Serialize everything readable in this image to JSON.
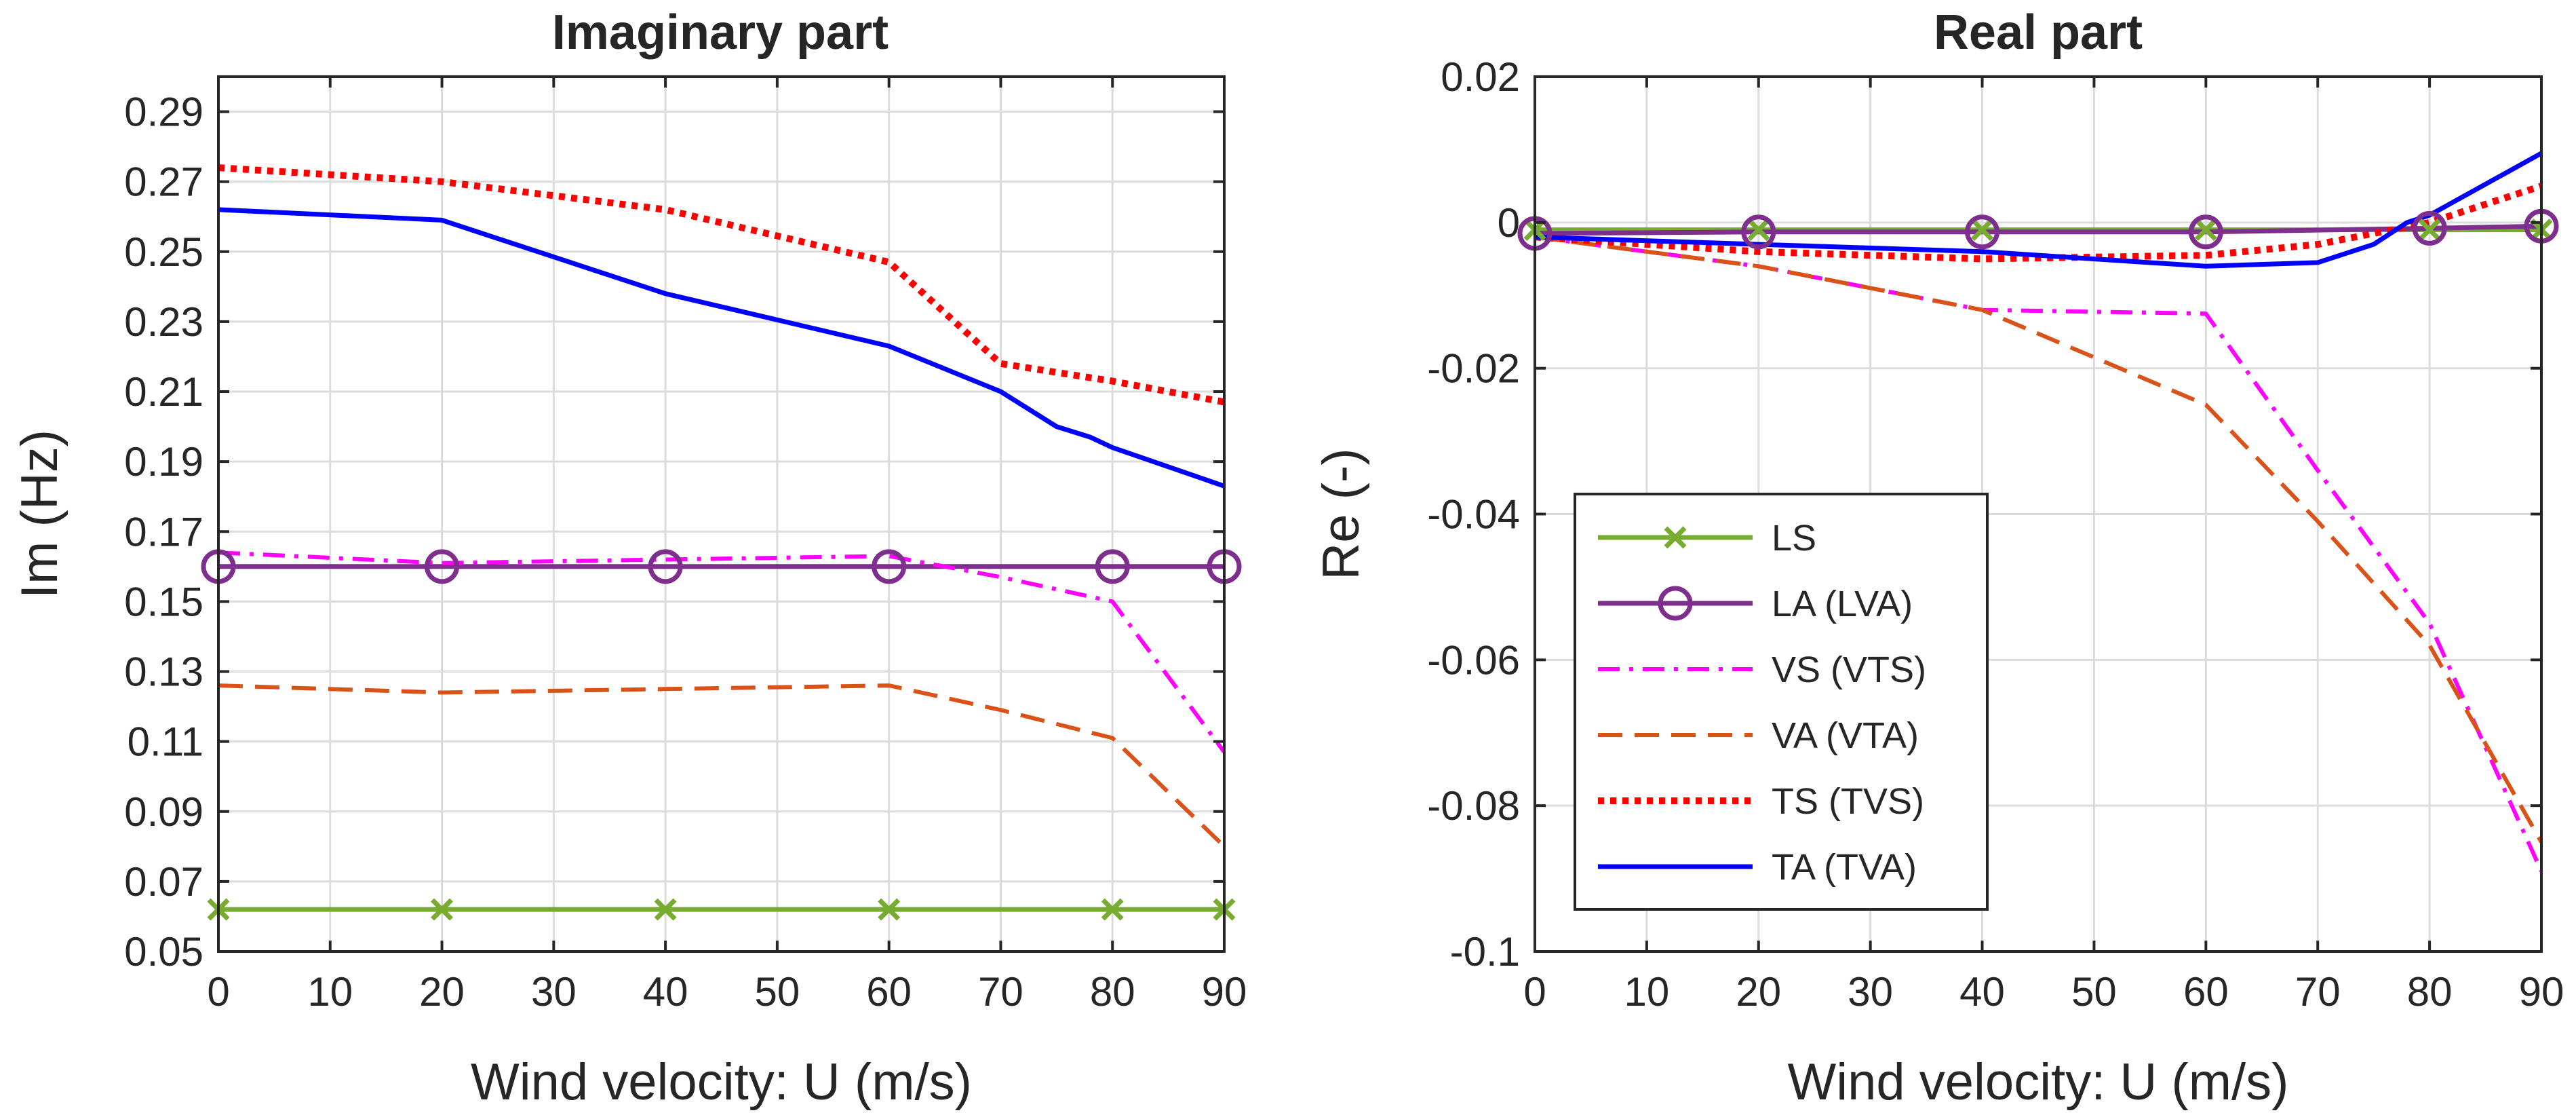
{
  "chart_data": [
    {
      "type": "line",
      "title": "Imaginary part",
      "xlabel": "Wind velocity: U (m/s)",
      "ylabel": "Im (Hz)",
      "xlim": [
        0,
        90
      ],
      "ylim": [
        0.05,
        0.3
      ],
      "grid": true,
      "x_ticks": [
        0,
        10,
        20,
        30,
        40,
        50,
        60,
        70,
        80,
        90
      ],
      "x_tick_labels": [
        "0",
        "10",
        "20",
        "30",
        "40",
        "50",
        "60",
        "70",
        "80",
        "90"
      ],
      "y_ticks": [
        0.05,
        0.07,
        0.09,
        0.11,
        0.13,
        0.15,
        0.17,
        0.19,
        0.21,
        0.23,
        0.25,
        0.27,
        0.29
      ],
      "y_tick_labels": [
        "0.05",
        "0.07",
        "0.09",
        "0.11",
        "0.13",
        "0.15",
        "0.17",
        "0.19",
        "0.21",
        "0.23",
        "0.25",
        "0.27",
        "0.29"
      ],
      "series": [
        {
          "name": "LS",
          "color": "#77ac30",
          "style": "solid",
          "marker": "x",
          "marker_x": [
            0,
            20,
            40,
            60,
            80,
            90
          ],
          "x": [
            0,
            20,
            40,
            60,
            80,
            90
          ],
          "y": [
            0.062,
            0.062,
            0.062,
            0.062,
            0.062,
            0.062
          ]
        },
        {
          "name": "LA (LVA)",
          "color": "#7e2f8e",
          "style": "solid",
          "marker": "o",
          "marker_x": [
            0,
            20,
            40,
            60,
            80,
            90
          ],
          "x": [
            0,
            20,
            40,
            60,
            80,
            90
          ],
          "y": [
            0.16,
            0.16,
            0.16,
            0.16,
            0.16,
            0.16
          ]
        },
        {
          "name": "VS (VTS)",
          "color": "#ff00ff",
          "style": "dashdot",
          "x": [
            0,
            20,
            40,
            60,
            70,
            80,
            90
          ],
          "y": [
            0.164,
            0.161,
            0.162,
            0.163,
            0.157,
            0.15,
            0.107
          ]
        },
        {
          "name": "VA (VTA)",
          "color": "#d95319",
          "style": "dashed",
          "x": [
            0,
            20,
            40,
            60,
            70,
            80,
            90
          ],
          "y": [
            0.126,
            0.124,
            0.125,
            0.126,
            0.119,
            0.111,
            0.08
          ]
        },
        {
          "name": "TS (TVS)",
          "color": "#ff0000",
          "style": "dotted",
          "x": [
            0,
            20,
            40,
            60,
            70,
            80,
            90
          ],
          "y": [
            0.274,
            0.27,
            0.262,
            0.247,
            0.218,
            0.213,
            0.207
          ]
        },
        {
          "name": "TA (TVA)",
          "color": "#0000ff",
          "style": "solid",
          "x": [
            0,
            20,
            40,
            60,
            70,
            75,
            78,
            80,
            90
          ],
          "y": [
            0.262,
            0.259,
            0.238,
            0.223,
            0.21,
            0.2,
            0.197,
            0.194,
            0.183
          ]
        }
      ]
    },
    {
      "type": "line",
      "title": "Real part",
      "xlabel": "Wind velocity: U (m/s)",
      "ylabel": "Re (-)",
      "xlim": [
        0,
        90
      ],
      "ylim": [
        -0.1,
        0.02
      ],
      "grid": true,
      "x_ticks": [
        0,
        10,
        20,
        30,
        40,
        50,
        60,
        70,
        80,
        90
      ],
      "x_tick_labels": [
        "0",
        "10",
        "20",
        "30",
        "40",
        "50",
        "60",
        "70",
        "80",
        "90"
      ],
      "y_ticks": [
        -0.1,
        -0.08,
        -0.06,
        -0.04,
        -0.02,
        0,
        0.02
      ],
      "y_tick_labels": [
        "-0.1",
        "-0.08",
        "-0.06",
        "-0.04",
        "-0.02",
        "0",
        "0.02"
      ],
      "legend": {
        "position": "lower-left",
        "labels": [
          "LS",
          "LA (LVA)",
          "VS (VTS)",
          "VA (VTA)",
          "TS (TVS)",
          "TA (TVA)"
        ]
      },
      "series": [
        {
          "name": "LS",
          "color": "#77ac30",
          "style": "solid",
          "marker": "x",
          "marker_x": [
            0,
            20,
            40,
            60,
            80,
            90
          ],
          "x": [
            0,
            20,
            40,
            60,
            80,
            90
          ],
          "y": [
            -0.001,
            -0.001,
            -0.001,
            -0.001,
            -0.001,
            -0.001
          ]
        },
        {
          "name": "LA (LVA)",
          "color": "#7e2f8e",
          "style": "solid",
          "marker": "o",
          "marker_x": [
            0,
            20,
            40,
            60,
            80,
            90
          ],
          "x": [
            0,
            20,
            40,
            60,
            80,
            90
          ],
          "y": [
            -0.0015,
            -0.0013,
            -0.0013,
            -0.0013,
            -0.0008,
            -0.0005
          ]
        },
        {
          "name": "VS (VTS)",
          "color": "#ff00ff",
          "style": "dashdot",
          "x": [
            0,
            20,
            40,
            60,
            70,
            80,
            90
          ],
          "y": [
            -0.002,
            -0.006,
            -0.012,
            -0.0125,
            -0.034,
            -0.055,
            -0.089
          ]
        },
        {
          "name": "VA (VTA)",
          "color": "#d95319",
          "style": "dashed",
          "x": [
            0,
            20,
            40,
            60,
            70,
            80,
            90
          ],
          "y": [
            -0.002,
            -0.006,
            -0.012,
            -0.025,
            -0.041,
            -0.058,
            -0.085
          ]
        },
        {
          "name": "TS (TVS)",
          "color": "#ff0000",
          "style": "dotted",
          "x": [
            0,
            20,
            40,
            60,
            70,
            80,
            90
          ],
          "y": [
            -0.002,
            -0.004,
            -0.005,
            -0.0045,
            -0.003,
            0.0,
            0.005
          ]
        },
        {
          "name": "TA (TVA)",
          "color": "#0000ff",
          "style": "solid",
          "x": [
            0,
            20,
            40,
            60,
            70,
            75,
            78,
            80,
            90
          ],
          "y": [
            -0.002,
            -0.003,
            -0.004,
            -0.006,
            -0.0055,
            -0.003,
            0.0,
            0.001,
            0.0095
          ]
        }
      ]
    }
  ]
}
